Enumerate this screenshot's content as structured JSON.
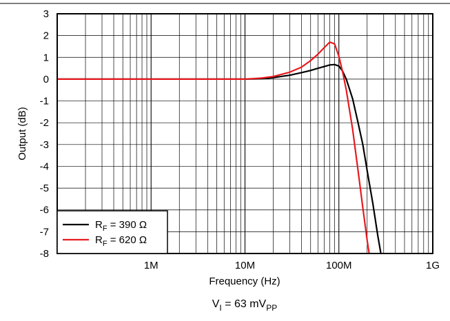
{
  "chart_data": {
    "type": "line",
    "title": "",
    "xlabel": "Frequency (Hz)",
    "ylabel": "Output (dB)",
    "x_scale": "log",
    "xlim": [
      100000,
      1000000000
    ],
    "ylim": [
      -8,
      3
    ],
    "grid": true,
    "x_tick_labels": [
      {
        "value": 1000000,
        "label": "1M"
      },
      {
        "value": 10000000,
        "label": "10M"
      },
      {
        "value": 100000000,
        "label": "100M"
      },
      {
        "value": 1000000000,
        "label": "1G"
      }
    ],
    "y_ticks": [
      3,
      2,
      1,
      0,
      -1,
      -2,
      -3,
      -4,
      -5,
      -6,
      -7,
      -8
    ],
    "legend": {
      "placement": "bottom-left",
      "entries": [
        {
          "prefix": "R",
          "sub": "F",
          "suffix": " = 390 Ω",
          "color": "#000000"
        },
        {
          "prefix": "R",
          "sub": "F",
          "suffix": " = 620 Ω",
          "color": "#e8191e"
        }
      ]
    },
    "note": {
      "prefix": "V",
      "sub": "I",
      "middle": " = 63 mV",
      "sub2": "PP"
    },
    "series": [
      {
        "color": "#000000",
        "x": [
          100000,
          1000000,
          10000000,
          15000000,
          20000000,
          30000000,
          40000000,
          50000000,
          60000000,
          70000000,
          80000000,
          90000000,
          100000000,
          110000000,
          120000000,
          140000000,
          160000000,
          180000000,
          200000000,
          230000000,
          260000000,
          280000000
        ],
        "y": [
          0,
          0,
          0,
          0.02,
          0.07,
          0.18,
          0.3,
          0.4,
          0.5,
          0.58,
          0.65,
          0.67,
          0.6,
          0.35,
          0.0,
          -0.9,
          -2.0,
          -3.0,
          -4.2,
          -5.7,
          -7.2,
          -8.0
        ]
      },
      {
        "color": "#e8191e",
        "x": [
          100000,
          1000000,
          10000000,
          15000000,
          20000000,
          30000000,
          40000000,
          50000000,
          60000000,
          70000000,
          80000000,
          90000000,
          100000000,
          110000000,
          120000000,
          140000000,
          160000000,
          180000000,
          200000000,
          210000000
        ],
        "y": [
          0,
          0,
          0,
          0.05,
          0.12,
          0.32,
          0.55,
          0.85,
          1.15,
          1.45,
          1.7,
          1.62,
          1.05,
          0.3,
          -0.5,
          -2.3,
          -4.2,
          -5.9,
          -7.4,
          -8.0
        ]
      }
    ]
  }
}
